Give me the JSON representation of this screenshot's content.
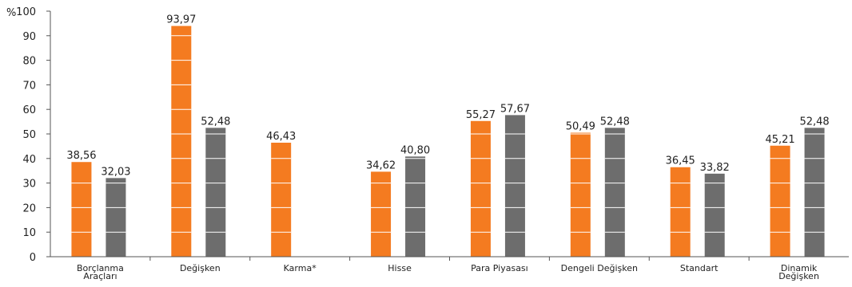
{
  "chart_data": {
    "type": "bar",
    "unit_label": "%",
    "ylim": [
      0,
      100
    ],
    "yticks": [
      0,
      10,
      20,
      30,
      40,
      50,
      60,
      70,
      80,
      90,
      100
    ],
    "grid": "white lines across bars only",
    "legend": "none",
    "categories": [
      [
        "Borçlanma",
        "Araçları"
      ],
      [
        "Değişken"
      ],
      [
        "Karma*"
      ],
      [
        "Hisse"
      ],
      [
        "Para Piyasası"
      ],
      [
        "Dengeli Değişken"
      ],
      [
        "Standart"
      ],
      [
        "Dinamik",
        "Değişken"
      ]
    ],
    "series": [
      {
        "color": "#f47b20",
        "values": [
          38.56,
          93.97,
          46.43,
          34.62,
          55.27,
          50.49,
          36.45,
          45.21
        ],
        "labels": [
          "38,56",
          "93,97",
          "46,43",
          "34,62",
          "55,27",
          "50,49",
          "36,45",
          "45,21"
        ]
      },
      {
        "color": "#6d6d6d",
        "values": [
          32.03,
          52.48,
          null,
          40.8,
          57.67,
          52.48,
          33.82,
          52.48
        ],
        "labels": [
          "32,03",
          "52,48",
          null,
          "40,80",
          "57,67",
          "52,48",
          "33,82",
          "52,48"
        ]
      }
    ]
  }
}
